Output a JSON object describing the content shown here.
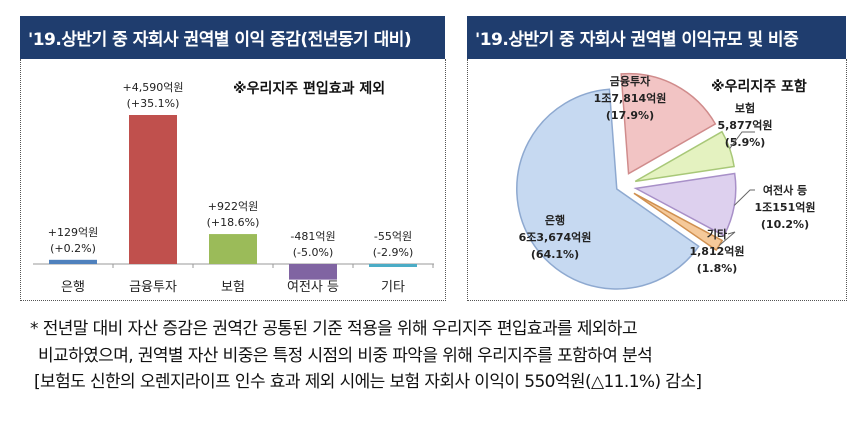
{
  "left": {
    "title": "'19.상반기 중 자회사 권역별 이익 증감(전년동기 대비)",
    "note": "※우리지주 편입효과 제외"
  },
  "right": {
    "title": "'19.상반기 중 자회사 권역별 이익규모 및 비중",
    "note": "※우리지주 포함"
  },
  "chart_data": [
    {
      "type": "bar",
      "title": "'19.상반기 중 자회사 권역별 이익 증감(전년동기 대비)",
      "categories": [
        "은행",
        "금융투자",
        "보험",
        "여전사 등",
        "기타"
      ],
      "values": [
        129,
        4590,
        922,
        -481,
        -55
      ],
      "value_labels": [
        "+129억원",
        "+4,590억원",
        "+922억원",
        "-481억원",
        "-55억원"
      ],
      "pct_labels": [
        "(+0.2%)",
        "(+35.1%)",
        "(+18.6%)",
        "(-5.0%)",
        "(-2.9%)"
      ],
      "colors": [
        "#4f81bd",
        "#c0504d",
        "#9bbb59",
        "#8064a2",
        "#4bacc6"
      ],
      "unit": "억원"
    },
    {
      "type": "pie",
      "title": "'19.상반기 중 자회사 권역별 이익규모 및 비중",
      "categories": [
        "은행",
        "금융투자",
        "보험",
        "여전사 등",
        "기타"
      ],
      "values": [
        64.1,
        17.9,
        5.9,
        10.2,
        1.8
      ],
      "amount_labels": [
        "6조3,674억원",
        "1조7,814억원",
        "5,877억원",
        "1조151억원",
        "1,812억원"
      ],
      "pct_labels": [
        "(64.1%)",
        "(17.9%)",
        "(5.9%)",
        "(10.2%)",
        "(1.8%)"
      ],
      "colors": [
        "#c6d9f1",
        "#f2c4c4",
        "#e4f2c0",
        "#ddd0ee",
        "#f5c99a"
      ],
      "edge_colors": [
        "#8ea9d0",
        "#d08c8c",
        "#a8c878",
        "#a890c8",
        "#d09050"
      ]
    }
  ],
  "footnote": {
    "line1": "* 전년말 대비 자산 증감은 권역간 공통된 기준 적용을 위해 우리지주 편입효과를 제외하고",
    "line2": "비교하였으며, 권역별 자산 비중은 특정 시점의 비중 파악을 위해 우리지주를 포함하여 분석",
    "line3": "[보험도 신한의 오렌지라이프 인수 효과 제외 시에는 보험 자회사 이익이 550억원(△11.1%) 감소]"
  }
}
